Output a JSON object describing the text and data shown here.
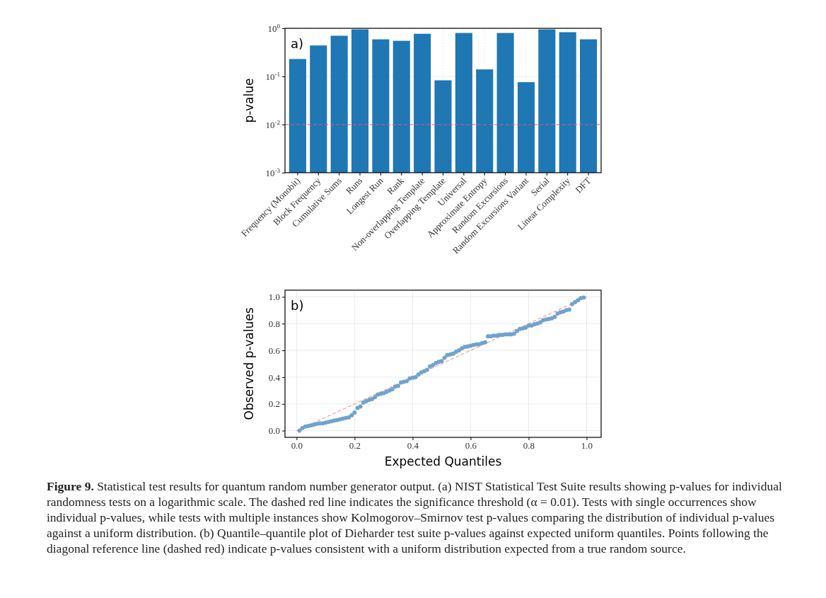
{
  "chart_data": [
    {
      "type": "bar",
      "ylabel": "p-value",
      "annotations": [
        "a)"
      ],
      "categories": [
        "Frequency (Monobit)",
        "Block Frequency",
        "Cumulative Sums",
        "Runs",
        "Longest Run",
        "Rank",
        "Non-overlapping Template",
        "Overlapping Template",
        "Universal",
        "Approximate Entropy",
        "Random Excursions",
        "Random Excursions Variant",
        "Serial",
        "Linear Complexity",
        "DFT"
      ],
      "values": [
        0.23,
        0.44,
        0.7,
        0.95,
        0.59,
        0.55,
        0.77,
        0.083,
        0.8,
        0.14,
        0.8,
        0.076,
        0.95,
        0.83,
        0.59
      ],
      "color": "#1f77b4",
      "log": true,
      "ylim": [
        0.001,
        1
      ],
      "yticks": [
        {
          "value": 0.001,
          "label": "10$^{-3}$"
        },
        {
          "value": 0.01,
          "label": "10$^{-2}$"
        },
        {
          "value": 0.1,
          "label": "10$^{-1}$"
        },
        {
          "value": 1,
          "label": "10$^{0}$"
        }
      ],
      "grid": true,
      "ref_lines": [
        {
          "axis": "y",
          "value": 0.01,
          "color": "#e06060",
          "line_style": "dashed"
        }
      ]
    },
    {
      "type": "scatter",
      "xlabel": "Expected Quantiles",
      "ylabel": "Observed p-values",
      "grid": true,
      "xlim": [
        -0.04,
        1.05
      ],
      "ylim": [
        -0.05,
        1.05
      ],
      "xticks": [
        {
          "value": 0,
          "label": "0.0"
        },
        0.2,
        0.4,
        0.6,
        0.8,
        {
          "value": 1,
          "label": "1.0"
        }
      ],
      "yticks": [
        {
          "value": 0,
          "label": "0.0"
        },
        0.2,
        0.4,
        0.6,
        0.8,
        {
          "value": 1,
          "label": "1.0"
        }
      ],
      "annotations": [
        "b)",
        "Figure 9. Statistical test results for quantum random number generator output. (a) NIST Statistical Test Suite results showing p-values for individual randomness tests on a logarithmic scale. The dashed red line indicates the significance threshold (α = 0.01). Tests with single occurrences show individual p-values, while tests with multiple instances show Kolmogorov–Smirnov test p-values comparing the distribution of individual p-values against a uniform distribution. (b) Quantile–quantile plot of Dieharder test suite p-values against expected uniform quantiles. Points following the diagonal reference line (dashed red) indicate p-values consistent with a uniform distribution expected from a true random source."
      ],
      "series": [
        {
          "type": "line",
          "color": "#f08080",
          "line_style": "dashed",
          "marker": "none",
          "x": [
            0,
            1
          ],
          "values": [
            0,
            1
          ]
        },
        {
          "type": "scatter",
          "color": "#6fa3cf",
          "marker": "circle",
          "x": [
            0.01,
            0.02,
            0.03,
            0.04,
            0.05,
            0.06,
            0.07,
            0.08,
            0.09,
            0.1,
            0.11,
            0.12,
            0.13,
            0.14,
            0.15,
            0.16,
            0.17,
            0.18,
            0.19,
            0.2,
            0.21,
            0.22,
            0.23,
            0.24,
            0.25,
            0.26,
            0.27,
            0.28,
            0.29,
            0.3,
            0.31,
            0.32,
            0.33,
            0.34,
            0.35,
            0.36,
            0.37,
            0.38,
            0.39,
            0.4,
            0.41,
            0.42,
            0.43,
            0.44,
            0.45,
            0.46,
            0.47,
            0.48,
            0.49,
            0.5,
            0.51,
            0.52,
            0.53,
            0.54,
            0.55,
            0.56,
            0.57,
            0.58,
            0.59,
            0.6,
            0.61,
            0.62,
            0.63,
            0.64,
            0.65,
            0.66,
            0.67,
            0.68,
            0.69,
            0.7,
            0.71,
            0.72,
            0.73,
            0.74,
            0.75,
            0.76,
            0.77,
            0.78,
            0.79,
            0.8,
            0.81,
            0.82,
            0.83,
            0.84,
            0.85,
            0.86,
            0.87,
            0.88,
            0.89,
            0.9,
            0.91,
            0.92,
            0.93,
            0.94,
            0.95,
            0.96,
            0.97,
            0.98,
            0.99
          ],
          "values": [
            0.0,
            0.02,
            0.03,
            0.035,
            0.04,
            0.045,
            0.05,
            0.055,
            0.055,
            0.06,
            0.065,
            0.07,
            0.075,
            0.08,
            0.085,
            0.09,
            0.095,
            0.1,
            0.115,
            0.135,
            0.17,
            0.18,
            0.21,
            0.22,
            0.23,
            0.235,
            0.25,
            0.27,
            0.275,
            0.28,
            0.29,
            0.3,
            0.31,
            0.33,
            0.335,
            0.36,
            0.365,
            0.37,
            0.39,
            0.395,
            0.4,
            0.42,
            0.435,
            0.445,
            0.455,
            0.48,
            0.49,
            0.505,
            0.515,
            0.52,
            0.545,
            0.565,
            0.57,
            0.575,
            0.59,
            0.6,
            0.615,
            0.625,
            0.63,
            0.635,
            0.64,
            0.645,
            0.645,
            0.655,
            0.66,
            0.705,
            0.705,
            0.71,
            0.71,
            0.715,
            0.715,
            0.72,
            0.72,
            0.72,
            0.725,
            0.745,
            0.76,
            0.765,
            0.77,
            0.785,
            0.785,
            0.795,
            0.8,
            0.81,
            0.825,
            0.83,
            0.835,
            0.84,
            0.85,
            0.875,
            0.885,
            0.89,
            0.9,
            0.905,
            0.945,
            0.96,
            0.975,
            0.99,
            0.995
          ]
        }
      ]
    }
  ]
}
